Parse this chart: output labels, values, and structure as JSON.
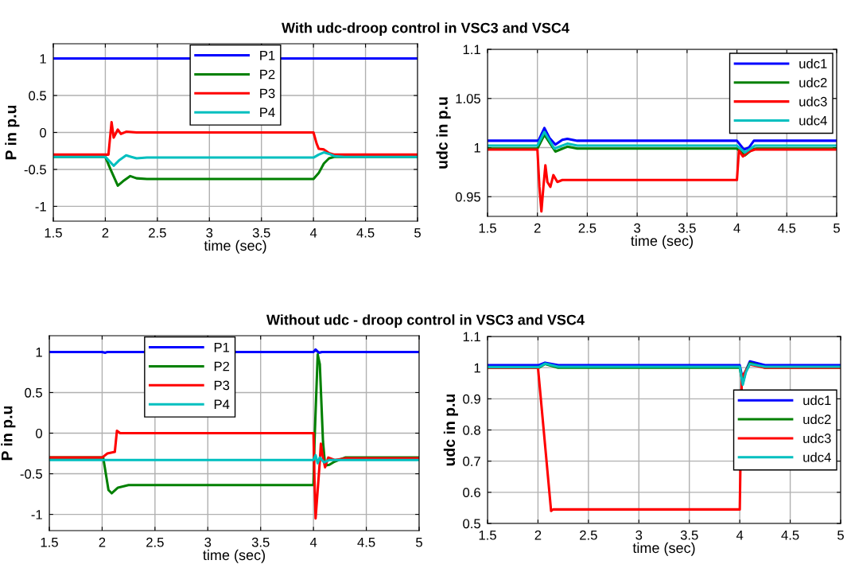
{
  "chart_data": [
    {
      "type": "line",
      "title": "With udc-droop control in VSC3 and VSC4",
      "xlabel": "time (sec)",
      "ylabel": "P in p.u",
      "xlim": [
        1.5,
        5
      ],
      "xticks": [
        1.5,
        2,
        2.5,
        3,
        3.5,
        4,
        4.5,
        5
      ],
      "ylim": [
        -1.2,
        1.2
      ],
      "yticks": [
        -1,
        -0.5,
        0,
        0.5,
        1
      ],
      "grid": true,
      "legend": "top",
      "series": [
        {
          "name": "P1",
          "color": "#0000ff",
          "x": [
            1.5,
            5
          ],
          "values": [
            1,
            1
          ]
        },
        {
          "name": "P2",
          "color": "#008000",
          "x": [
            1.5,
            2.0,
            2.05,
            2.12,
            2.17,
            2.24,
            2.3,
            2.4,
            4.0,
            4.05,
            4.1,
            4.15,
            4.2,
            5
          ],
          "values": [
            -0.33,
            -0.33,
            -0.5,
            -0.72,
            -0.66,
            -0.59,
            -0.62,
            -0.63,
            -0.63,
            -0.55,
            -0.42,
            -0.35,
            -0.33,
            -0.33
          ]
        },
        {
          "name": "P3",
          "color": "#ff0000",
          "x": [
            1.5,
            2.03,
            2.06,
            2.08,
            2.12,
            2.15,
            2.2,
            2.3,
            4.0,
            4.03,
            4.05,
            4.1,
            4.15,
            4.2,
            5
          ],
          "values": [
            -0.3,
            -0.3,
            0.14,
            -0.07,
            0.04,
            -0.02,
            0.01,
            0,
            0,
            -0.15,
            -0.22,
            -0.23,
            -0.28,
            -0.3,
            -0.3
          ]
        },
        {
          "name": "P4",
          "color": "#00bfbf",
          "x": [
            1.5,
            2.0,
            2.08,
            2.13,
            2.2,
            2.25,
            2.3,
            2.4,
            4.0,
            4.05,
            4.1,
            4.15,
            4.2,
            4.3,
            5
          ],
          "values": [
            -0.33,
            -0.33,
            -0.45,
            -0.38,
            -0.31,
            -0.33,
            -0.35,
            -0.34,
            -0.34,
            -0.3,
            -0.27,
            -0.29,
            -0.32,
            -0.33,
            -0.33
          ]
        }
      ]
    },
    {
      "type": "line",
      "xlabel": "time (sec)",
      "ylabel": "udc in p.u",
      "xlim": [
        1.5,
        5
      ],
      "xticks": [
        1.5,
        2,
        2.5,
        3,
        3.5,
        4,
        4.5,
        5
      ],
      "ylim": [
        0.93,
        1.1
      ],
      "yticks": [
        0.95,
        1,
        1.05,
        1.1
      ],
      "grid": true,
      "legend": "top right",
      "series": [
        {
          "name": "udc1",
          "color": "#0000ff",
          "x": [
            1.5,
            2.01,
            2.07,
            2.12,
            2.18,
            2.25,
            2.3,
            2.4,
            4.0,
            4.07,
            4.12,
            4.17,
            5
          ],
          "values": [
            1.007,
            1.007,
            1.02,
            1.01,
            1.003,
            1.008,
            1.009,
            1.007,
            1.007,
            0.998,
            1.0,
            1.007,
            1.007
          ]
        },
        {
          "name": "udc2",
          "color": "#008000",
          "x": [
            1.5,
            2.0,
            2.07,
            2.18,
            2.3,
            2.4,
            4.0,
            4.08,
            4.15,
            4.2,
            5
          ],
          "values": [
            0.999,
            0.999,
            1.013,
            0.996,
            1.001,
            0.999,
            0.999,
            0.992,
            0.998,
            0.999,
            0.999
          ]
        },
        {
          "name": "udc3",
          "color": "#ff0000",
          "x": [
            1.5,
            2.0,
            2.02,
            2.04,
            2.06,
            2.08,
            2.1,
            2.13,
            2.16,
            2.2,
            2.25,
            4.0,
            4.02,
            4.06,
            4.12,
            4.18,
            5
          ],
          "values": [
            0.998,
            0.998,
            0.96,
            0.935,
            0.96,
            0.982,
            0.965,
            0.96,
            0.972,
            0.965,
            0.967,
            0.967,
            0.997,
            0.991,
            0.996,
            0.998,
            0.998
          ]
        },
        {
          "name": "udc4",
          "color": "#00bfbf",
          "x": [
            1.5,
            2.0,
            2.07,
            2.17,
            2.3,
            2.4,
            4.0,
            4.08,
            4.18,
            5
          ],
          "values": [
            1.002,
            1.002,
            1.016,
            0.999,
            1.004,
            1.002,
            1.002,
            0.995,
            1.002,
            1.002
          ]
        }
      ]
    },
    {
      "type": "line",
      "title": "Without udc - droop control in VSC3 and VSC4",
      "xlabel": "time (sec)",
      "ylabel": "P in p.u",
      "xlim": [
        1.5,
        5
      ],
      "xticks": [
        1.5,
        2,
        2.5,
        3,
        3.5,
        4,
        4.5,
        5
      ],
      "ylim": [
        -1.2,
        1.2
      ],
      "yticks": [
        -1,
        -0.5,
        0,
        0.5,
        1
      ],
      "grid": true,
      "legend": "top",
      "series": [
        {
          "name": "P1",
          "color": "#0000ff",
          "x": [
            1.5,
            2.0,
            2.03,
            2.05,
            4.0,
            4.02,
            4.05,
            4.08,
            5
          ],
          "values": [
            1,
            1,
            0.99,
            1,
            1,
            1.03,
            0.99,
            1,
            1
          ]
        },
        {
          "name": "P2",
          "color": "#008000",
          "x": [
            1.5,
            2.01,
            2.06,
            2.09,
            2.15,
            2.25,
            4.0,
            4.01,
            4.04,
            4.06,
            4.09,
            4.11,
            4.15,
            4.2,
            4.3,
            5
          ],
          "values": [
            -0.3,
            -0.3,
            -0.7,
            -0.74,
            -0.67,
            -0.64,
            -0.64,
            -0.1,
            0.97,
            0.85,
            -0.1,
            -0.4,
            -0.39,
            -0.35,
            -0.3,
            -0.3
          ]
        },
        {
          "name": "P3",
          "color": "#ff0000",
          "x": [
            1.5,
            2.0,
            2.05,
            2.12,
            2.14,
            2.17,
            4.0,
            4.01,
            4.02,
            4.04,
            4.06,
            4.07,
            4.09,
            4.11,
            4.14,
            4.2,
            4.3,
            5
          ],
          "values": [
            -0.3,
            -0.3,
            -0.25,
            -0.23,
            0.03,
            0,
            0,
            -0.6,
            -1.05,
            -0.7,
            -0.35,
            -0.13,
            -0.3,
            -0.42,
            -0.3,
            -0.33,
            -0.31,
            -0.31
          ]
        },
        {
          "name": "P4",
          "color": "#00bfbf",
          "x": [
            1.5,
            4.0,
            4.02,
            4.04,
            4.06,
            4.1,
            4.15,
            5
          ],
          "values": [
            -0.33,
            -0.33,
            -0.27,
            -0.37,
            -0.3,
            -0.36,
            -0.33,
            -0.33
          ]
        }
      ]
    },
    {
      "type": "line",
      "xlabel": "time (sec)",
      "ylabel": "udc in p.u",
      "xlim": [
        1.5,
        5
      ],
      "xticks": [
        1.5,
        2,
        2.5,
        3,
        3.5,
        4,
        4.5,
        5
      ],
      "ylim": [
        0.5,
        1.1
      ],
      "yticks": [
        0.5,
        0.6,
        0.7,
        0.8,
        0.9,
        1,
        1.1
      ],
      "grid": true,
      "legend": "right",
      "series": [
        {
          "name": "udc1",
          "color": "#0000ff",
          "x": [
            1.5,
            2.01,
            2.07,
            2.2,
            4.0,
            4.03,
            4.06,
            4.1,
            4.25,
            5
          ],
          "values": [
            1.008,
            1.008,
            1.016,
            1.008,
            1.008,
            0.96,
            0.99,
            1.02,
            1.008,
            1.008
          ]
        },
        {
          "name": "udc2",
          "color": "#008000",
          "x": [
            1.5,
            2.01,
            2.07,
            2.2,
            4.0,
            4.03,
            4.06,
            4.1,
            4.25,
            5
          ],
          "values": [
            1.0,
            1.0,
            1.012,
            1.0,
            1.0,
            0.95,
            0.99,
            1.015,
            1.0,
            1.0
          ]
        },
        {
          "name": "udc3",
          "color": "#ff0000",
          "x": [
            1.5,
            2.0,
            2.13,
            2.15,
            4.0,
            4.02,
            4.1,
            4.25,
            5
          ],
          "values": [
            1.0,
            1.0,
            0.54,
            0.545,
            0.545,
            0.97,
            1.01,
            1.0,
            1.0
          ]
        },
        {
          "name": "udc4",
          "color": "#00bfbf",
          "x": [
            1.5,
            2.01,
            2.07,
            2.2,
            4.0,
            4.03,
            4.06,
            4.1,
            4.25,
            5
          ],
          "values": [
            1.002,
            1.002,
            1.013,
            1.003,
            1.003,
            0.945,
            0.985,
            1.012,
            1.003,
            1.003
          ]
        }
      ]
    }
  ]
}
